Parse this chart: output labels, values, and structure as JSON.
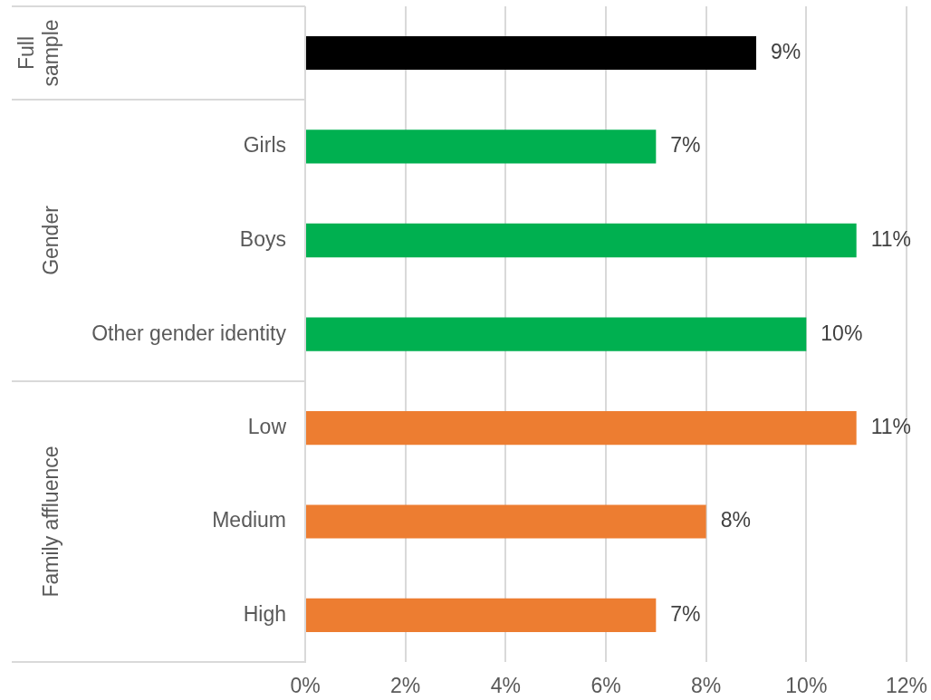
{
  "chart_data": [
    {
      "type": "bar",
      "orientation": "horizontal",
      "ylabel": "Full sample",
      "categories": [
        null
      ],
      "values": [
        9
      ],
      "value_labels": [
        "9%"
      ],
      "color": "#000000",
      "xlim": [
        0,
        12
      ],
      "xticks": [
        0,
        2,
        4,
        6,
        8,
        10,
        12
      ],
      "grid": "x",
      "tick_labels": "y"
    },
    {
      "type": "bar",
      "orientation": "horizontal",
      "ylabel": "Gender",
      "categories": [
        "Girls",
        "Boys",
        "Other gender identity"
      ],
      "values": [
        7,
        11,
        10
      ],
      "value_labels": [
        "7%",
        "11%",
        "10%"
      ],
      "color": "#00b050",
      "xlim": [
        0,
        12
      ],
      "xticks": [
        0,
        2,
        4,
        6,
        8,
        10,
        12
      ],
      "grid": "x",
      "tick_labels": "y"
    },
    {
      "type": "bar",
      "orientation": "horizontal",
      "ylabel": "Family affluence",
      "categories": [
        "Low",
        "Medium",
        "High"
      ],
      "values": [
        11,
        8,
        7
      ],
      "value_labels": [
        "11%",
        "8%",
        "7%"
      ],
      "color": "#ed7d31",
      "xlim": [
        0,
        12
      ],
      "xticks": [
        {
          "value": 0,
          "label": "0%"
        },
        {
          "value": 2,
          "label": "2%"
        },
        {
          "value": 4,
          "label": "4%"
        },
        {
          "value": 6,
          "label": "6%"
        },
        {
          "value": 8,
          "label": "8%"
        },
        {
          "value": 10,
          "label": "10%"
        },
        {
          "value": 12,
          "label": "12%"
        }
      ],
      "grid": "x"
    }
  ]
}
